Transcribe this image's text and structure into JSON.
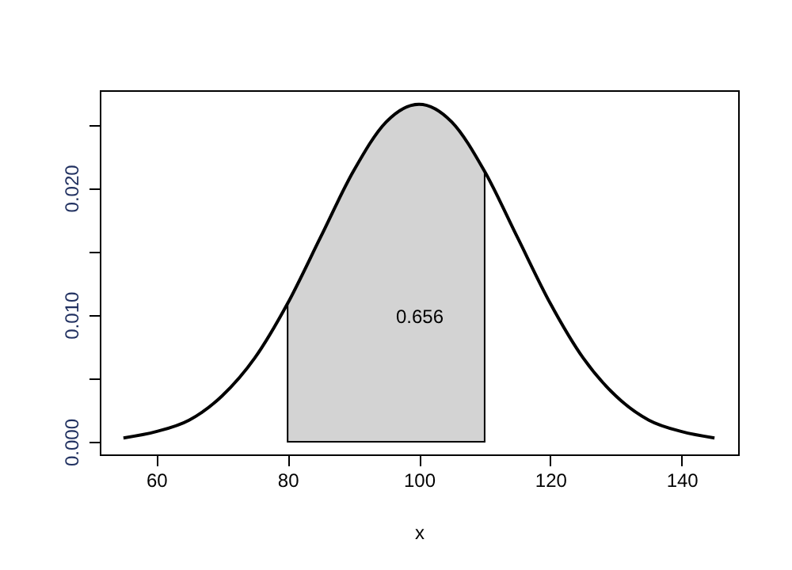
{
  "chart_data": {
    "type": "line",
    "xlabel": "x",
    "xlim": [
      51.4,
      148.6
    ],
    "ylim": [
      -0.001,
      0.0277
    ],
    "xticks": [
      60,
      80,
      100,
      120,
      140
    ],
    "yticks": [
      {
        "value": 0,
        "label": "0.000"
      },
      {
        "value": 0.005,
        "label": null
      },
      {
        "value": 0.01,
        "label": "0.010"
      },
      {
        "value": 0.015,
        "label": null
      },
      {
        "value": 0.02,
        "label": "0.020"
      },
      {
        "value": 0.025,
        "label": null
      }
    ],
    "grid": false,
    "series": [
      {
        "type": "area",
        "color": "#d3d3d3",
        "x": [
          80,
          85,
          90,
          95,
          100,
          105,
          110
        ],
        "values": [
          0.0109,
          0.0161,
          0.0213,
          0.0252,
          0.0266,
          0.0252,
          0.0213
        ]
      },
      {
        "color": "#000000",
        "x": [
          55,
          60,
          65,
          70,
          75,
          80,
          85,
          90,
          95,
          100,
          105,
          110,
          115,
          120,
          125,
          130,
          135,
          140,
          145
        ],
        "values": [
          0.0003,
          0.0008,
          0.0017,
          0.0036,
          0.0066,
          0.0109,
          0.0161,
          0.0213,
          0.0252,
          0.0266,
          0.0252,
          0.0213,
          0.0161,
          0.0109,
          0.0066,
          0.0036,
          0.0017,
          0.0008,
          0.0003
        ]
      }
    ],
    "annotations": [
      "0.656"
    ]
  }
}
